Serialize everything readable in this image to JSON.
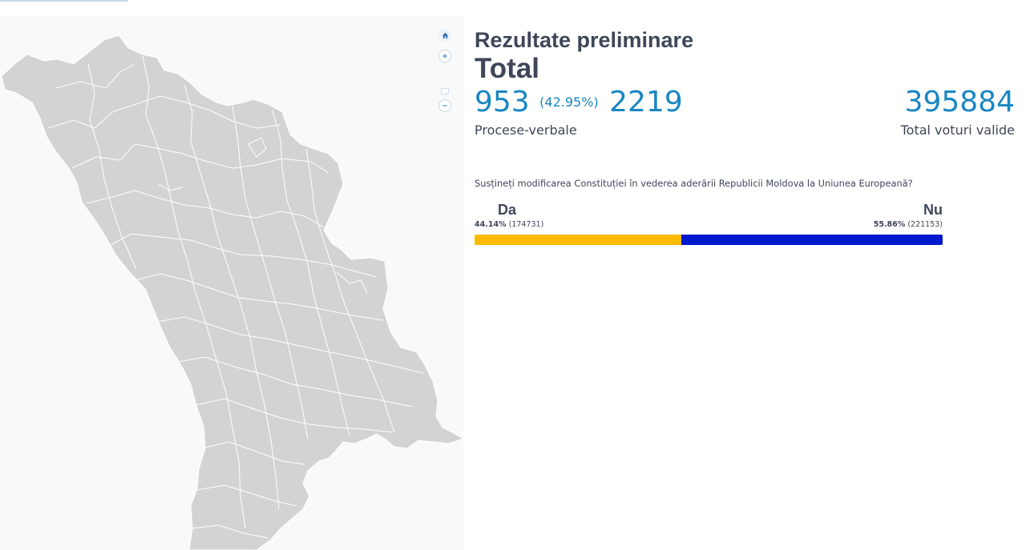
{
  "header": {
    "title": "Rezultate preliminare",
    "subtitle": "Total"
  },
  "stats": {
    "processed": "953",
    "processed_pct": "(42.95%)",
    "total_reports": "2219",
    "reports_label": "Procese-verbale",
    "valid_votes": "395884",
    "valid_votes_label": "Total voturi valide"
  },
  "referendum": {
    "question": "Susțineți modificarea Constituției în vederea aderării Republicii Moldova la Uniunea Europeană?",
    "yes": {
      "label": "Da",
      "percent": "44.14%",
      "votes": "(174731)",
      "share": 44.14,
      "color": "#fdbb00"
    },
    "no": {
      "label": "Nu",
      "percent": "55.86%",
      "votes": "(221153)",
      "share": 55.86,
      "color": "#0019cc"
    }
  },
  "map": {
    "controls": [
      "home-icon",
      "zoom-in-icon",
      "zoom-out-icon"
    ],
    "fill": "#d3d3d3",
    "border": "#ffffff"
  }
}
